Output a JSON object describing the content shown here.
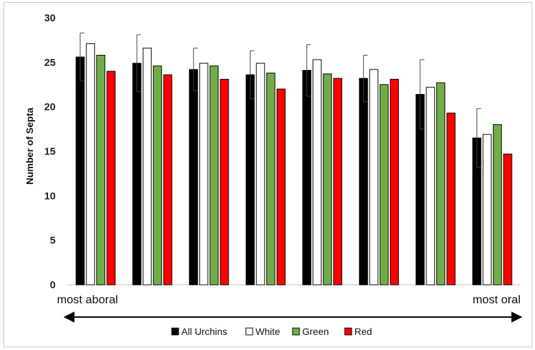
{
  "chart_data": {
    "type": "bar",
    "title": "",
    "xlabel": "",
    "ylabel": "Number of Septa",
    "ylim": [
      0,
      30
    ],
    "yticks": [
      0,
      5,
      10,
      15,
      20,
      25,
      30
    ],
    "grid": false,
    "legend_position": "bottom",
    "x_endpoints": {
      "left": "most aboral",
      "right": "most oral"
    },
    "groups": 8,
    "series": [
      {
        "name": "All Urchins",
        "color": "#000000",
        "values": [
          25.6,
          24.9,
          24.2,
          23.6,
          24.1,
          23.2,
          21.4,
          16.5
        ],
        "error": [
          2.7,
          3.2,
          2.4,
          2.7,
          2.9,
          2.6,
          3.9,
          3.3
        ]
      },
      {
        "name": "White",
        "color": "#ffffff",
        "values": [
          27.1,
          26.6,
          24.9,
          24.9,
          25.3,
          24.2,
          22.2,
          16.9
        ]
      },
      {
        "name": "Green",
        "color": "#70ad47",
        "values": [
          25.8,
          24.6,
          24.6,
          23.8,
          23.7,
          22.5,
          22.7,
          18.0
        ]
      },
      {
        "name": "Red",
        "color": "#ff0000",
        "values": [
          24.0,
          23.6,
          23.1,
          22.0,
          23.2,
          23.1,
          19.3,
          14.7
        ]
      }
    ]
  }
}
